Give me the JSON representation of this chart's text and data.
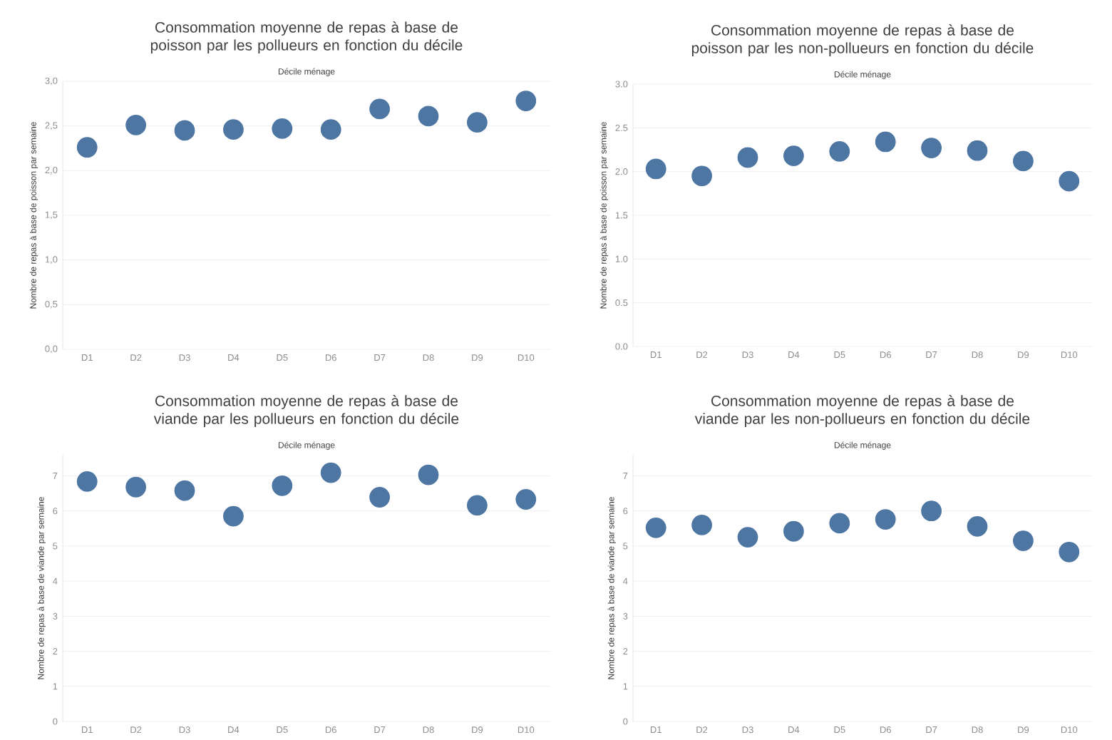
{
  "chart_data": [
    {
      "type": "scatter",
      "title": "Consommation moyenne de repas à base de poisson par les pollueurs en fonction du décile",
      "xlabel": "Décile ménage",
      "ylabel": "Nombre de repas à base de poisson par semaine",
      "categories": [
        "D1",
        "D2",
        "D3",
        "D4",
        "D5",
        "D6",
        "D7",
        "D8",
        "D9",
        "D10"
      ],
      "values": [
        2.26,
        2.51,
        2.45,
        2.46,
        2.47,
        2.46,
        2.69,
        2.61,
        2.54,
        2.78
      ],
      "color": "#4e76a3",
      "marker": "circle",
      "grid": "y",
      "ylim": [
        0,
        3
      ],
      "yticks": [
        {
          "value": 0,
          "label": "0,0"
        },
        {
          "value": 0.5,
          "label": "0,5"
        },
        {
          "value": 1,
          "label": "1,0"
        },
        {
          "value": 1.5,
          "label": "1,5"
        },
        {
          "value": 2,
          "label": "2,0"
        },
        {
          "value": 2.5,
          "label": "2,5"
        },
        {
          "value": 3,
          "label": "3,0"
        }
      ]
    },
    {
      "type": "scatter",
      "title": "Consommation moyenne de repas à base de poisson par les non-pollueurs en fonction du décile",
      "xlabel": "Décile ménage",
      "ylabel": "Nombre de repas à base de poisson par semaine",
      "categories": [
        "D1",
        "D2",
        "D3",
        "D4",
        "D5",
        "D6",
        "D7",
        "D8",
        "D9",
        "D10"
      ],
      "values": [
        2.03,
        1.95,
        2.16,
        2.18,
        2.23,
        2.34,
        2.27,
        2.24,
        2.12,
        1.89
      ],
      "color": "#4e76a3",
      "marker": "circle",
      "grid": "y",
      "ylim": [
        0,
        3
      ],
      "yticks": [
        {
          "value": 0,
          "label": "0.0"
        },
        {
          "value": 0.5,
          "label": "0.5"
        },
        {
          "value": 1,
          "label": "1.0"
        },
        {
          "value": 1.5,
          "label": "1.5"
        },
        {
          "value": 2,
          "label": "2.0"
        },
        {
          "value": 2.5,
          "label": "2.5"
        },
        {
          "value": 3,
          "label": "3.0"
        }
      ]
    },
    {
      "type": "scatter",
      "title": "Consommation moyenne de repas à base de viande par les pollueurs en fonction du décile",
      "xlabel": "Décile ménage",
      "ylabel": "Nombre de repas à base de viande par semaine",
      "categories": [
        "D1",
        "D2",
        "D3",
        "D4",
        "D5",
        "D6",
        "D7",
        "D8",
        "D9",
        "D10"
      ],
      "values": [
        6.84,
        6.68,
        6.58,
        5.85,
        6.72,
        7.09,
        6.39,
        7.03,
        6.16,
        6.33
      ],
      "color": "#4e76a3",
      "marker": "circle",
      "grid": "y",
      "ylim": [
        0,
        7.6
      ],
      "yticks": [
        0,
        1,
        2,
        3,
        4,
        5,
        6,
        7
      ]
    },
    {
      "type": "scatter",
      "title": "Consommation moyenne de repas à base de viande par les non-pollueurs en fonction du décile",
      "xlabel": "Décile ménage",
      "ylabel": "Nombre de repas à base de viande par semaine",
      "categories": [
        "D1",
        "D2",
        "D3",
        "D4",
        "D5",
        "D6",
        "D7",
        "D8",
        "D9",
        "D10"
      ],
      "values": [
        5.52,
        5.6,
        5.25,
        5.42,
        5.65,
        5.76,
        6.0,
        5.56,
        5.15,
        4.83
      ],
      "color": "#4e76a3",
      "marker": "circle",
      "grid": "y",
      "ylim": [
        0,
        7.6
      ],
      "yticks": [
        0,
        1,
        2,
        3,
        4,
        5,
        6,
        7
      ]
    }
  ]
}
